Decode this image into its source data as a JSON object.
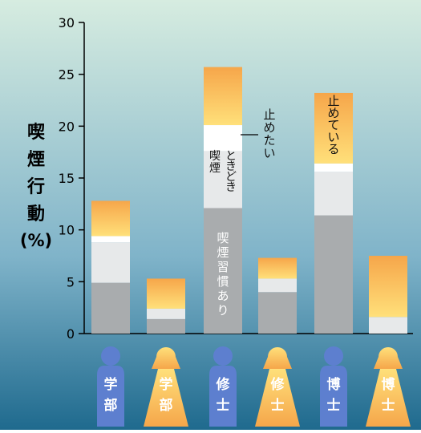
{
  "chart_data": {
    "type": "bar",
    "stacked": true,
    "ylabel": "喫煙行動(%)",
    "ylim": [
      0,
      30
    ],
    "yticks": [
      0,
      5,
      10,
      15,
      20,
      25,
      30
    ],
    "grid": false,
    "categories": [
      {
        "line1": "学",
        "line2": "部",
        "sex": "male"
      },
      {
        "line1": "学",
        "line2": "部",
        "sex": "female"
      },
      {
        "line1": "修",
        "line2": "士",
        "sex": "male"
      },
      {
        "line1": "修",
        "line2": "士",
        "sex": "female"
      },
      {
        "line1": "博",
        "line2": "士",
        "sex": "male"
      },
      {
        "line1": "博",
        "line2": "士",
        "sex": "female"
      }
    ],
    "series": [
      {
        "name": "喫煙習慣あり",
        "values": [
          4.9,
          1.4,
          12.1,
          4.0,
          11.4,
          0.0
        ]
      },
      {
        "name": "ときどき喫煙",
        "values": [
          3.9,
          1.0,
          5.5,
          1.3,
          4.2,
          1.6
        ]
      },
      {
        "name": "(small white band)",
        "values": [
          0.6,
          0.0,
          2.5,
          0.0,
          0.8,
          0.0
        ]
      },
      {
        "name": "止めたい",
        "values": [
          0.0,
          0.0,
          0.0,
          0.0,
          0.0,
          0.0
        ]
      },
      {
        "name": "止めている",
        "values": [
          3.4,
          2.9,
          5.6,
          2.0,
          6.8,
          5.9
        ]
      }
    ],
    "annotations": {
      "habit": "喫煙習慣あり",
      "sometimes": "ときどき喫煙",
      "want_quit": "止めたい",
      "quit": "止めている"
    },
    "colors": {
      "bg_top": "#d6ece0",
      "bg_bottom": "#1f6a8e",
      "habit": "#a9acae",
      "sometimes": "#e7e9ea",
      "want_quit": "#ffffff",
      "quit_top": "#f6a64a",
      "quit_bottom": "#ffe07a",
      "male_icon": "#5d7fcf",
      "female_icon_top": "#ffe07a",
      "female_icon_bottom": "#f5a64a",
      "axis": "#000000"
    }
  }
}
